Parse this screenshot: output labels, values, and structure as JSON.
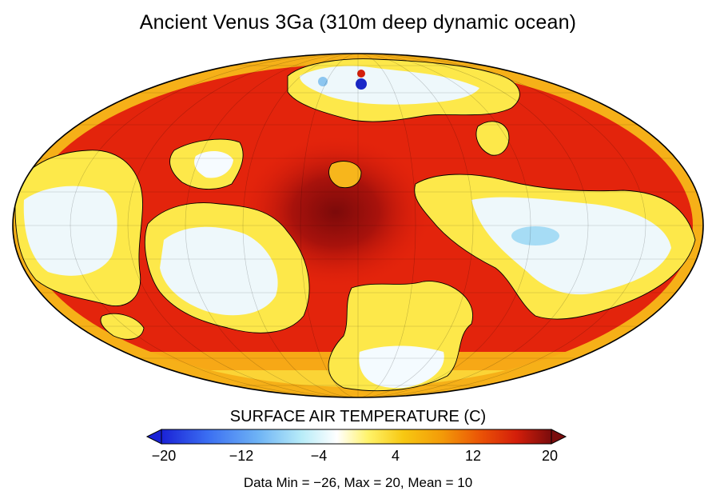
{
  "title": "Ancient Venus 3Ga (310m deep dynamic ocean)",
  "colorbar": {
    "label": "SURFACE AIR TEMPERATURE (C)",
    "ticks": [
      "−20",
      "−12",
      "−4",
      "4",
      "12",
      "20"
    ],
    "tick_values": [
      -20,
      -12,
      -4,
      4,
      12,
      20
    ],
    "min": -20,
    "max": 20,
    "extend": "both",
    "colors": [
      "#1a22d6",
      "#3b6ff2",
      "#6fb4f5",
      "#b8ecf8",
      "#ffffff",
      "#fff36a",
      "#f7c812",
      "#f39a08",
      "#ea5206",
      "#d41e0a",
      "#7a0c0c"
    ]
  },
  "stats": "Data Min = −26, Max = 20, Mean = 10",
  "map": {
    "projection": "Mollweide",
    "field": "surface air temperature",
    "units": "C",
    "palette": {
      "warm": "#e0200c",
      "hot_core": "#8a0c0a",
      "mild": "#f6b018",
      "cool_yellow": "#fff34e",
      "cold_white": "#f4fbff",
      "coldest": "#1c2fd6"
    }
  }
}
